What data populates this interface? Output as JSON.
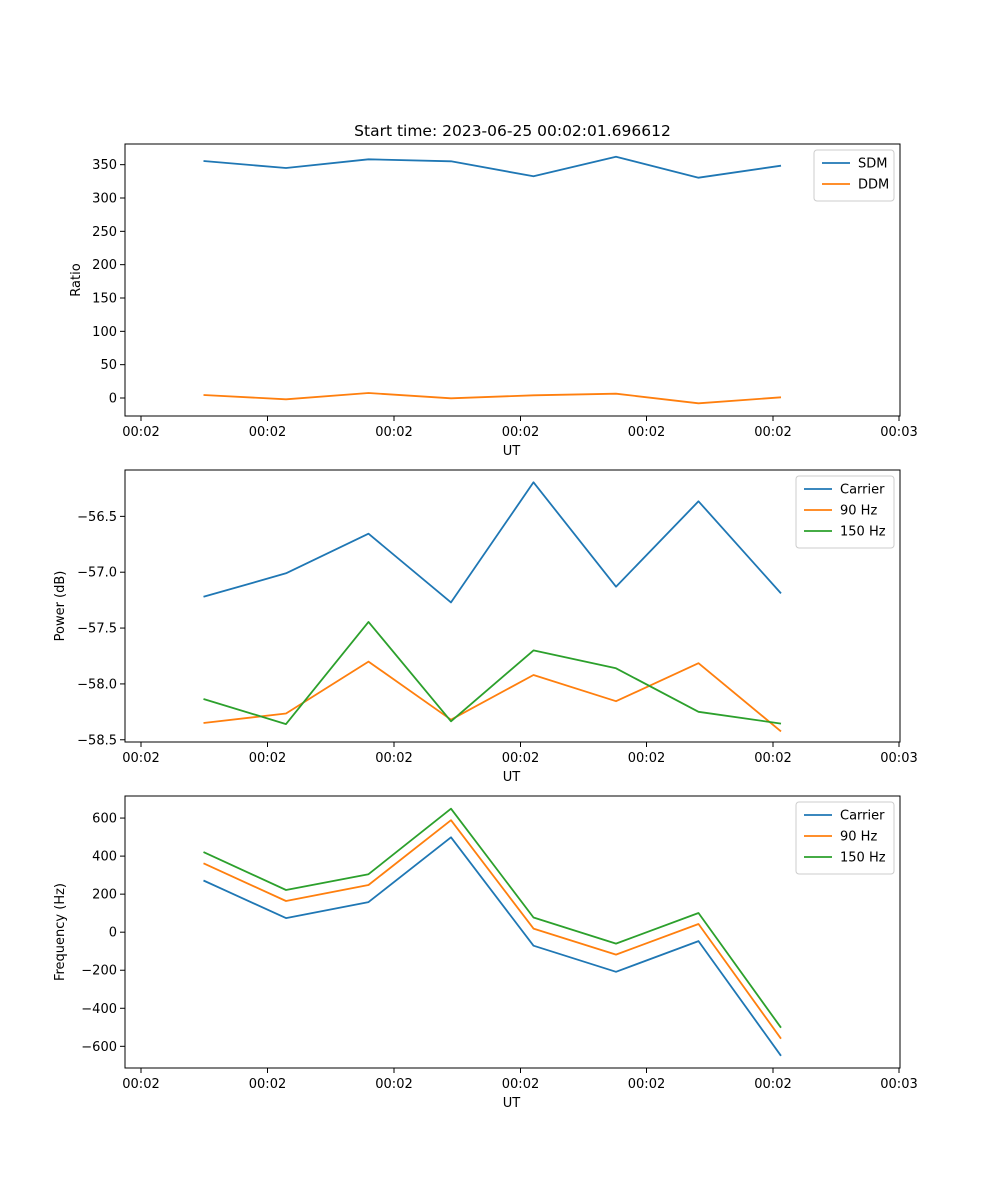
{
  "chart_data": [
    {
      "type": "line",
      "title": "Start time: 2023-06-25 00:02:01.696612",
      "xlabel": "UT",
      "ylabel": "Ratio",
      "x_tick_labels": [
        "00:02",
        "00:02",
        "00:02",
        "00:02",
        "00:02",
        "00:02",
        "00:02",
        "00:03"
      ],
      "y_ticks": [
        0,
        50,
        100,
        150,
        200,
        250,
        300,
        350
      ],
      "ylim": [
        -27,
        381
      ],
      "legend_position": "top-right",
      "series": [
        {
          "name": "SDM",
          "color": "#1f77b4",
          "values": [
            355.5,
            345,
            358,
            355,
            332.5,
            362,
            330.5,
            348.5
          ]
        },
        {
          "name": "DDM",
          "color": "#ff7f0e",
          "values": [
            4.5,
            -2,
            7.5,
            -0.5,
            4,
            6.5,
            -8,
            1
          ]
        }
      ]
    },
    {
      "type": "line",
      "title": "",
      "xlabel": "UT",
      "ylabel": "Power (dB)",
      "x_tick_labels": [
        "00:02",
        "00:02",
        "00:02",
        "00:02",
        "00:02",
        "00:02",
        "00:02",
        "00:03"
      ],
      "y_ticks": [
        -58.5,
        -58.0,
        -57.5,
        -57.0,
        -56.5
      ],
      "y_tick_labels": [
        "−58.5",
        "−58.0",
        "−57.5",
        "−57.0",
        "−56.5"
      ],
      "ylim": [
        -58.52,
        -56.085
      ],
      "legend_position": "top-right",
      "series": [
        {
          "name": "Carrier",
          "color": "#1f77b4",
          "values": [
            -57.22,
            -57.01,
            -56.655,
            -57.27,
            -56.195,
            -57.13,
            -56.365,
            -57.19
          ]
        },
        {
          "name": "90 Hz",
          "color": "#ff7f0e",
          "values": [
            -58.35,
            -58.265,
            -57.8,
            -58.32,
            -57.92,
            -58.155,
            -57.815,
            -58.425
          ]
        },
        {
          "name": "150 Hz",
          "color": "#2ca02c",
          "values": [
            -58.135,
            -58.36,
            -57.445,
            -58.335,
            -57.7,
            -57.86,
            -58.25,
            -58.355
          ]
        }
      ]
    },
    {
      "type": "line",
      "title": "",
      "xlabel": "UT",
      "ylabel": "Frequency (Hz)",
      "x_tick_labels": [
        "00:02",
        "00:02",
        "00:02",
        "00:02",
        "00:02",
        "00:02",
        "00:02",
        "00:03"
      ],
      "y_ticks": [
        -600,
        -400,
        -200,
        0,
        200,
        400,
        600
      ],
      "y_tick_labels": [
        "−600",
        "−400",
        "−200",
        "0",
        "200",
        "400",
        "600"
      ],
      "ylim": [
        -714,
        716
      ],
      "legend_position": "top-right",
      "series": [
        {
          "name": "Carrier",
          "color": "#1f77b4",
          "values": [
            272,
            74,
            158,
            499,
            -71,
            -208,
            -47,
            -650
          ]
        },
        {
          "name": "90 Hz",
          "color": "#ff7f0e",
          "values": [
            362,
            164,
            248,
            589,
            19,
            -118,
            43,
            -560
          ]
        },
        {
          "name": "150 Hz",
          "color": "#2ca02c",
          "values": [
            421,
            222,
            305,
            649,
            77,
            -60,
            101,
            -502
          ]
        }
      ]
    }
  ]
}
